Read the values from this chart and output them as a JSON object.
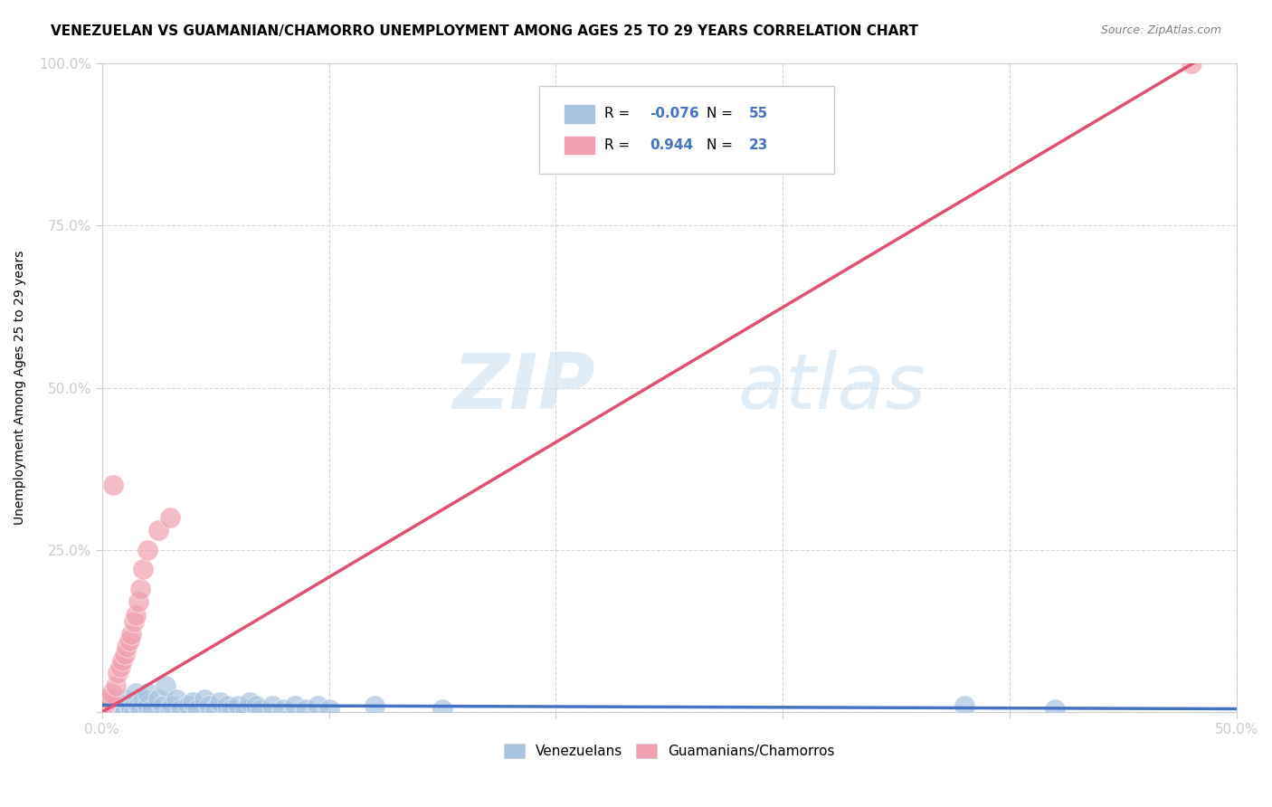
{
  "title": "VENEZUELAN VS GUAMANIAN/CHAMORRO UNEMPLOYMENT AMONG AGES 25 TO 29 YEARS CORRELATION CHART",
  "source": "Source: ZipAtlas.com",
  "ylabel": "Unemployment Among Ages 25 to 29 years",
  "xlim": [
    0,
    0.5
  ],
  "ylim": [
    0,
    1.0
  ],
  "grid_color": "#cccccc",
  "background_color": "#ffffff",
  "watermark_zip": "ZIP",
  "watermark_atlas": "atlas",
  "venezuelan_color": "#a8c4e0",
  "guamanian_color": "#f0a0b0",
  "venezuelan_line_color": "#4472c4",
  "guamanian_line_color": "#e05070",
  "R_venezuelan": -0.076,
  "N_venezuelan": 55,
  "R_guamanian": 0.944,
  "N_guamanian": 23,
  "legend_venezuelan": "Venezuelans",
  "legend_guamanian": "Guamanians/Chamorros",
  "title_fontsize": 11,
  "axis_label_fontsize": 10,
  "tick_fontsize": 11,
  "venezuelan_x": [
    0.0,
    0.0,
    0.001,
    0.002,
    0.003,
    0.004,
    0.005,
    0.006,
    0.007,
    0.008,
    0.009,
    0.01,
    0.01,
    0.012,
    0.013,
    0.014,
    0.015,
    0.015,
    0.016,
    0.017,
    0.018,
    0.02,
    0.02,
    0.022,
    0.025,
    0.027,
    0.028,
    0.03,
    0.031,
    0.033,
    0.035,
    0.038,
    0.04,
    0.042,
    0.045,
    0.047,
    0.05,
    0.052,
    0.055,
    0.057,
    0.06,
    0.063,
    0.065,
    0.068,
    0.07,
    0.075,
    0.08,
    0.085,
    0.09,
    0.095,
    0.1,
    0.12,
    0.15,
    0.38,
    0.42
  ],
  "venezuelan_y": [
    0.0,
    0.02,
    0.0,
    0.01,
    0.005,
    0.0,
    0.02,
    0.01,
    0.0,
    0.005,
    0.01,
    0.0,
    0.02,
    0.01,
    0.005,
    0.0,
    0.015,
    0.03,
    0.01,
    0.005,
    0.02,
    0.01,
    0.03,
    0.005,
    0.02,
    0.01,
    0.04,
    0.005,
    0.01,
    0.02,
    0.005,
    0.01,
    0.015,
    0.005,
    0.02,
    0.01,
    0.005,
    0.015,
    0.01,
    0.005,
    0.01,
    0.005,
    0.015,
    0.01,
    0.005,
    0.01,
    0.005,
    0.01,
    0.005,
    0.01,
    0.005,
    0.01,
    0.005,
    0.01,
    0.005
  ],
  "guamanian_x": [
    0.0,
    0.001,
    0.002,
    0.003,
    0.004,
    0.005,
    0.006,
    0.007,
    0.008,
    0.009,
    0.01,
    0.011,
    0.012,
    0.013,
    0.014,
    0.015,
    0.016,
    0.017,
    0.018,
    0.02,
    0.025,
    0.03,
    0.48
  ],
  "guamanian_y": [
    0.005,
    0.01,
    0.015,
    0.02,
    0.03,
    0.35,
    0.04,
    0.06,
    0.07,
    0.08,
    0.09,
    0.1,
    0.11,
    0.12,
    0.14,
    0.15,
    0.17,
    0.19,
    0.22,
    0.25,
    0.28,
    0.3,
    1.0
  ]
}
